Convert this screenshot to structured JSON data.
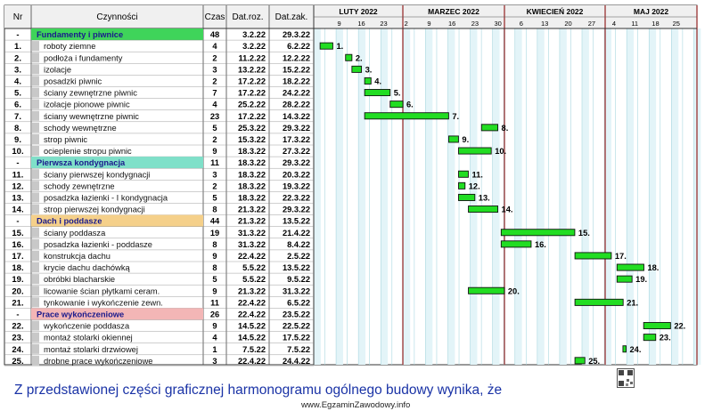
{
  "header": {
    "nr": "Nr",
    "activity": "Czynności",
    "duration": "Czas",
    "start": "Dat.roz.",
    "end": "Dat.zak."
  },
  "months": [
    {
      "label": "LUTY 2022",
      "days": [
        "9",
        "16",
        "23"
      ]
    },
    {
      "label": "MARZEC 2022",
      "days": [
        "2",
        "9",
        "16",
        "23",
        "30"
      ]
    },
    {
      "label": "KWIECIEŃ 2022",
      "days": [
        "6",
        "13",
        "20",
        "27"
      ]
    },
    {
      "label": "MAJ 2022",
      "days": [
        "4",
        "11",
        "18",
        "25"
      ]
    }
  ],
  "rows": [
    {
      "type": "group",
      "nr": "-",
      "name": "Fundamenty i piwnice",
      "duration": "48",
      "start": "3.2.22",
      "end": "29.3.22",
      "color": "#3fd45a"
    },
    {
      "type": "task",
      "nr": "1.",
      "name": "roboty ziemne",
      "duration": "4",
      "start": "3.2.22",
      "end": "6.2.22",
      "bar_label": "1."
    },
    {
      "type": "task",
      "nr": "2.",
      "name": "podłoża i fundamenty",
      "duration": "2",
      "start": "11.2.22",
      "end": "12.2.22",
      "bar_label": "2."
    },
    {
      "type": "task",
      "nr": "3.",
      "name": "izolacje",
      "duration": "3",
      "start": "13.2.22",
      "end": "15.2.22",
      "bar_label": "3."
    },
    {
      "type": "task",
      "nr": "4.",
      "name": "posadzki piwnic",
      "duration": "2",
      "start": "17.2.22",
      "end": "18.2.22",
      "bar_label": "4."
    },
    {
      "type": "task",
      "nr": "5.",
      "name": "ściany zewnętrzne piwnic",
      "duration": "7",
      "start": "17.2.22",
      "end": "24.2.22",
      "bar_label": "5."
    },
    {
      "type": "task",
      "nr": "6.",
      "name": "izolacje pionowe piwnic",
      "duration": "4",
      "start": "25.2.22",
      "end": "28.2.22",
      "bar_label": "6."
    },
    {
      "type": "task",
      "nr": "7.",
      "name": "ściany wewnętrzne piwnic",
      "duration": "23",
      "start": "17.2.22",
      "end": "14.3.22",
      "bar_label": "7."
    },
    {
      "type": "task",
      "nr": "8.",
      "name": "schody wewnętrzne",
      "duration": "5",
      "start": "25.3.22",
      "end": "29.3.22",
      "bar_label": "8."
    },
    {
      "type": "task",
      "nr": "9.",
      "name": "strop piwnic",
      "duration": "2",
      "start": "15.3.22",
      "end": "17.3.22",
      "bar_label": "9."
    },
    {
      "type": "task",
      "nr": "10.",
      "name": "ocieplenie stropu piwnic",
      "duration": "9",
      "start": "18.3.22",
      "end": "27.3.22",
      "bar_label": "10."
    },
    {
      "type": "group",
      "nr": "-",
      "name": "Pierwsza kondygnacja",
      "duration": "11",
      "start": "18.3.22",
      "end": "29.3.22",
      "color": "#7fe0c9"
    },
    {
      "type": "task",
      "nr": "11.",
      "name": "ściany pierwszej kondygnacji",
      "duration": "3",
      "start": "18.3.22",
      "end": "20.3.22",
      "bar_label": "11."
    },
    {
      "type": "task",
      "nr": "12.",
      "name": "schody zewnętrzne",
      "duration": "2",
      "start": "18.3.22",
      "end": "19.3.22",
      "bar_label": "12."
    },
    {
      "type": "task",
      "nr": "13.",
      "name": "posadzka łazienki - I kondygnacja",
      "duration": "5",
      "start": "18.3.22",
      "end": "22.3.22",
      "bar_label": "13."
    },
    {
      "type": "task",
      "nr": "14.",
      "name": "strop pierwszej kondygnacji",
      "duration": "8",
      "start": "21.3.22",
      "end": "29.3.22",
      "bar_label": "14."
    },
    {
      "type": "group",
      "nr": "-",
      "name": "Dach i poddasze",
      "duration": "44",
      "start": "21.3.22",
      "end": "13.5.22",
      "color": "#f5d08a"
    },
    {
      "type": "task",
      "nr": "15.",
      "name": "ściany poddasza",
      "duration": "19",
      "start": "31.3.22",
      "end": "21.4.22",
      "bar_label": "15."
    },
    {
      "type": "task",
      "nr": "16.",
      "name": "posadzka łazienki - poddasze",
      "duration": "8",
      "start": "31.3.22",
      "end": "8.4.22",
      "bar_label": "16."
    },
    {
      "type": "task",
      "nr": "17.",
      "name": "konstrukcja dachu",
      "duration": "9",
      "start": "22.4.22",
      "end": "2.5.22",
      "bar_label": "17."
    },
    {
      "type": "task",
      "nr": "18.",
      "name": "krycie dachu dachówką",
      "duration": "8",
      "start": "5.5.22",
      "end": "13.5.22",
      "bar_label": "18."
    },
    {
      "type": "task",
      "nr": "19.",
      "name": "obróbki blacharskie",
      "duration": "5",
      "start": "5.5.22",
      "end": "9.5.22",
      "bar_label": "19."
    },
    {
      "type": "task",
      "nr": "20.",
      "name": "licowanie ścian płytkami ceram.",
      "duration": "9",
      "start": "21.3.22",
      "end": "31.3.22",
      "bar_label": "20."
    },
    {
      "type": "task",
      "nr": "21.",
      "name": "tynkowanie i wykończenie zewn.",
      "duration": "11",
      "start": "22.4.22",
      "end": "6.5.22",
      "bar_label": "21."
    },
    {
      "type": "group",
      "nr": "-",
      "name": "Prace wykończeniowe",
      "duration": "26",
      "start": "22.4.22",
      "end": "23.5.22",
      "color": "#f3b6b6"
    },
    {
      "type": "task",
      "nr": "22.",
      "name": "wykończenie poddasza",
      "duration": "9",
      "start": "14.5.22",
      "end": "22.5.22",
      "bar_label": "22."
    },
    {
      "type": "task",
      "nr": "23.",
      "name": "montaż stolarki okiennej",
      "duration": "4",
      "start": "14.5.22",
      "end": "17.5.22",
      "bar_label": "23."
    },
    {
      "type": "task",
      "nr": "24.",
      "name": "montaż stolarki drzwiowej",
      "duration": "1",
      "start": "7.5.22",
      "end": "7.5.22",
      "bar_label": "24."
    },
    {
      "type": "task",
      "nr": "25.",
      "name": "drobne prace wykończeniowe",
      "duration": "3",
      "start": "22.4.22",
      "end": "24.4.22",
      "bar_label": "25."
    }
  ],
  "chart_data": {
    "type": "gantt",
    "x_axis": "date",
    "x_range": [
      "2022-02-01",
      "2022-05-31"
    ],
    "bar_color": "#22dd22",
    "tasks": [
      {
        "label": "1.",
        "start": "2022-02-03",
        "end": "2022-02-06"
      },
      {
        "label": "2.",
        "start": "2022-02-11",
        "end": "2022-02-12"
      },
      {
        "label": "3.",
        "start": "2022-02-13",
        "end": "2022-02-15"
      },
      {
        "label": "4.",
        "start": "2022-02-17",
        "end": "2022-02-18"
      },
      {
        "label": "5.",
        "start": "2022-02-17",
        "end": "2022-02-24"
      },
      {
        "label": "6.",
        "start": "2022-02-25",
        "end": "2022-02-28"
      },
      {
        "label": "7.",
        "start": "2022-02-17",
        "end": "2022-03-14"
      },
      {
        "label": "8.",
        "start": "2022-03-25",
        "end": "2022-03-29"
      },
      {
        "label": "9.",
        "start": "2022-03-15",
        "end": "2022-03-17"
      },
      {
        "label": "10.",
        "start": "2022-03-18",
        "end": "2022-03-27"
      },
      {
        "label": "11.",
        "start": "2022-03-18",
        "end": "2022-03-20"
      },
      {
        "label": "12.",
        "start": "2022-03-18",
        "end": "2022-03-19"
      },
      {
        "label": "13.",
        "start": "2022-03-18",
        "end": "2022-03-22"
      },
      {
        "label": "14.",
        "start": "2022-03-21",
        "end": "2022-03-29"
      },
      {
        "label": "15.",
        "start": "2022-03-31",
        "end": "2022-04-21"
      },
      {
        "label": "16.",
        "start": "2022-03-31",
        "end": "2022-04-08"
      },
      {
        "label": "17.",
        "start": "2022-04-22",
        "end": "2022-05-02"
      },
      {
        "label": "18.",
        "start": "2022-05-05",
        "end": "2022-05-13"
      },
      {
        "label": "19.",
        "start": "2022-05-05",
        "end": "2022-05-09"
      },
      {
        "label": "20.",
        "start": "2022-03-21",
        "end": "2022-03-31"
      },
      {
        "label": "21.",
        "start": "2022-04-22",
        "end": "2022-05-06"
      },
      {
        "label": "22.",
        "start": "2022-05-14",
        "end": "2022-05-22"
      },
      {
        "label": "23.",
        "start": "2022-05-14",
        "end": "2022-05-17"
      },
      {
        "label": "24.",
        "start": "2022-05-07",
        "end": "2022-05-07"
      },
      {
        "label": "25.",
        "start": "2022-04-22",
        "end": "2022-04-24"
      }
    ]
  },
  "question": "Z przedstawionej części graficznej harmonogramu ogólnego budowy wynika, że",
  "website": "www.EgzaminZawodowy.info"
}
